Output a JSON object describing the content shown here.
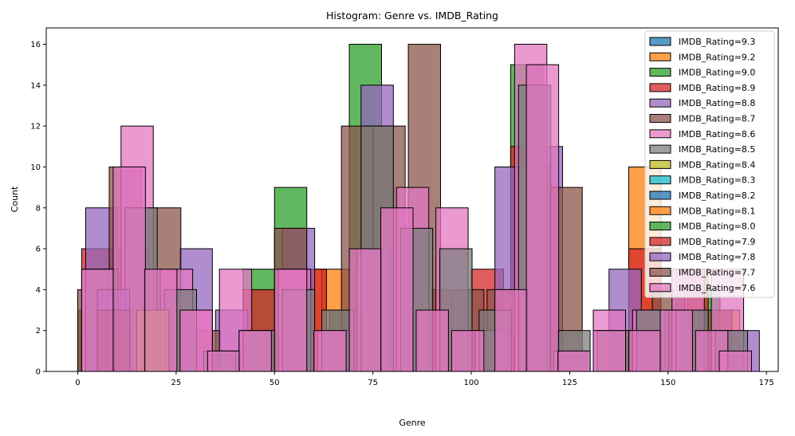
{
  "chart_data": {
    "type": "histogram",
    "title": "Histogram: Genre vs. IMDB_Rating",
    "xlabel": "Genre",
    "ylabel": "Count",
    "xlim": [
      -8,
      178
    ],
    "ylim": [
      0,
      16.8
    ],
    "xticks": [
      0,
      25,
      50,
      75,
      100,
      125,
      150,
      175
    ],
    "yticks": [
      0,
      2,
      4,
      6,
      8,
      10,
      12,
      14,
      16
    ],
    "legend_position": "top-right",
    "grid": false,
    "series": [
      {
        "name": "IMDB_Rating=9.3",
        "color": "#1f77b4",
        "bars": [
          [
            0,
            2
          ],
          [
            105,
            2
          ]
        ]
      },
      {
        "name": "IMDB_Rating=9.2",
        "color": "#ff7f0e",
        "bars": [
          [
            0,
            3
          ],
          [
            55,
            5
          ],
          [
            62,
            5
          ],
          [
            105,
            2
          ],
          [
            140,
            10
          ],
          [
            155,
            2
          ],
          [
            160,
            3
          ]
        ]
      },
      {
        "name": "IMDB_Rating=9.0",
        "color": "#2ca02c",
        "bars": [
          [
            0,
            3
          ],
          [
            10,
            3
          ],
          [
            42,
            5
          ],
          [
            50,
            9
          ],
          [
            69,
            16
          ],
          [
            110,
            15
          ],
          [
            155,
            4
          ]
        ]
      },
      {
        "name": "IMDB_Rating=8.9",
        "color": "#d62728",
        "bars": [
          [
            1,
            6
          ],
          [
            10,
            6
          ],
          [
            42,
            4
          ],
          [
            55,
            5
          ],
          [
            90,
            4
          ],
          [
            100,
            5
          ],
          [
            110,
            11
          ],
          [
            140,
            6
          ],
          [
            152,
            5
          ]
        ]
      },
      {
        "name": "IMDB_Rating=8.8",
        "color": "#9467bd",
        "bars": [
          [
            2,
            8
          ],
          [
            26,
            6
          ],
          [
            35,
            3
          ],
          [
            52,
            7
          ],
          [
            72,
            14
          ],
          [
            106,
            10
          ],
          [
            115,
            11
          ],
          [
            135,
            5
          ],
          [
            145,
            3
          ],
          [
            165,
            2
          ]
        ]
      },
      {
        "name": "IMDB_Rating=8.7",
        "color": "#8c564b",
        "bars": [
          [
            0,
            4
          ],
          [
            8,
            10
          ],
          [
            18,
            8
          ],
          [
            28,
            2
          ],
          [
            50,
            7
          ],
          [
            64,
            3
          ],
          [
            67,
            12
          ],
          [
            75,
            12
          ],
          [
            84,
            16
          ],
          [
            95,
            4
          ],
          [
            104,
            4
          ],
          [
            112,
            10
          ],
          [
            120,
            9
          ],
          [
            137,
            2
          ],
          [
            146,
            4
          ],
          [
            158,
            3
          ]
        ]
      },
      {
        "name": "IMDB_Rating=8.6",
        "color": "#e377c2",
        "bars": [
          [
            1,
            5
          ],
          [
            11,
            12
          ],
          [
            21,
            5
          ],
          [
            26,
            3
          ],
          [
            36,
            5
          ],
          [
            41,
            2
          ],
          [
            51,
            5
          ],
          [
            61,
            2
          ],
          [
            71,
            6
          ],
          [
            81,
            9
          ],
          [
            91,
            8
          ],
          [
            101,
            2
          ],
          [
            111,
            16
          ],
          [
            121,
            1
          ],
          [
            131,
            3
          ],
          [
            141,
            3
          ],
          [
            151,
            5
          ],
          [
            161,
            5
          ]
        ]
      },
      {
        "name": "IMDB_Rating=8.5",
        "color": "#7f7f7f",
        "bars": [
          [
            2,
            5
          ],
          [
            12,
            8
          ],
          [
            22,
            4
          ],
          [
            32,
            1
          ],
          [
            42,
            2
          ],
          [
            52,
            4
          ],
          [
            62,
            3
          ],
          [
            72,
            12
          ],
          [
            82,
            7
          ],
          [
            92,
            6
          ],
          [
            102,
            3
          ],
          [
            112,
            14
          ],
          [
            122,
            2
          ],
          [
            132,
            2
          ],
          [
            142,
            3
          ],
          [
            152,
            3
          ],
          [
            162,
            2
          ]
        ]
      },
      {
        "name": "IMDB_Rating=8.4",
        "color": "#bcbd22",
        "bars": [
          [
            5,
            2
          ],
          [
            15,
            3
          ]
        ]
      },
      {
        "name": "IMDB_Rating=8.3",
        "color": "#17becf",
        "bars": [
          [
            5,
            1
          ]
        ]
      },
      {
        "name": "IMDB_Rating=8.2",
        "color": "#1f77b4",
        "bars": [
          [
            5,
            2
          ]
        ]
      },
      {
        "name": "IMDB_Rating=8.1",
        "color": "#ff7f0e",
        "bars": [
          [
            5,
            2
          ]
        ]
      },
      {
        "name": "IMDB_Rating=8.0",
        "color": "#2ca02c",
        "bars": [
          [
            5,
            2
          ]
        ]
      },
      {
        "name": "IMDB_Rating=7.9",
        "color": "#d62728",
        "bars": [
          [
            5,
            3
          ]
        ]
      },
      {
        "name": "IMDB_Rating=7.8",
        "color": "#9467bd",
        "bars": [
          [
            5,
            4
          ]
        ]
      },
      {
        "name": "IMDB_Rating=7.7",
        "color": "#8c564b",
        "bars": [
          [
            5,
            3
          ]
        ]
      },
      {
        "name": "IMDB_Rating=7.6",
        "color": "#e377c2",
        "bars": [
          [
            1,
            5
          ],
          [
            9,
            10
          ],
          [
            17,
            5
          ],
          [
            26,
            3
          ],
          [
            33,
            1
          ],
          [
            41,
            2
          ],
          [
            50,
            5
          ],
          [
            60,
            2
          ],
          [
            69,
            6
          ],
          [
            77,
            8
          ],
          [
            86,
            3
          ],
          [
            95,
            2
          ],
          [
            106,
            4
          ],
          [
            114,
            15
          ],
          [
            122,
            1
          ],
          [
            131,
            2
          ],
          [
            140,
            2
          ],
          [
            148,
            3
          ],
          [
            157,
            2
          ],
          [
            163,
            1
          ]
        ]
      }
    ]
  }
}
